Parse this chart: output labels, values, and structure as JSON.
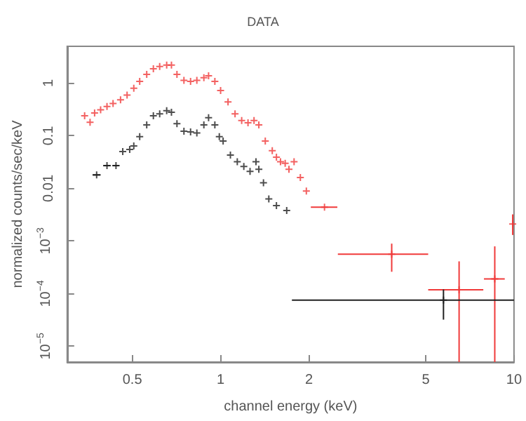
{
  "chart_data": {
    "type": "scatter",
    "title": "DATA",
    "xlabel": "channel energy (keV)",
    "ylabel": "normalized counts/sec/keV",
    "log": "xy",
    "marker": "cross",
    "xlim": [
      0.3,
      10
    ],
    "xticks": [
      0.5,
      1,
      2,
      5,
      10
    ],
    "ylim": [
      5e-06,
      5
    ],
    "yticks": [
      1,
      0.1,
      0.01,
      {
        "value": 0.001,
        "label": "10$^{−3}$"
      },
      {
        "value": 0.0001,
        "label": "10$^{−4}$"
      },
      {
        "value": 1e-05,
        "label": "10$^{−5}$"
      }
    ],
    "series": [
      {
        "color": "#f03a3a",
        "x": [
          0.344,
          0.359,
          0.372,
          0.39,
          0.41,
          0.43,
          0.456,
          0.48,
          0.506,
          0.53,
          0.56,
          0.59,
          0.62,
          0.655,
          0.68,
          0.71,
          0.75,
          0.79,
          0.83,
          0.877,
          0.91,
          0.956,
          1.0,
          1.06,
          1.12,
          1.18,
          1.24,
          1.3,
          1.35,
          1.42,
          1.5,
          1.55,
          1.6,
          1.66,
          1.71,
          1.78,
          1.87,
          1.96,
          2.26,
          3.83,
          6.5,
          8.6,
          9.9
        ],
        "values": [
          0.24,
          0.18,
          0.27,
          0.31,
          0.36,
          0.41,
          0.48,
          0.59,
          0.8,
          1.08,
          1.46,
          1.87,
          2.07,
          2.2,
          2.2,
          1.46,
          1.13,
          1.08,
          1.13,
          1.27,
          1.38,
          1.08,
          0.72,
          0.44,
          0.26,
          0.195,
          0.176,
          0.195,
          0.16,
          0.079,
          0.052,
          0.039,
          0.032,
          0.03,
          0.023,
          0.032,
          0.016,
          0.0089,
          0.0044,
          0.00056,
          0.000118,
          0.00019,
          0.0021
        ],
        "xerrors": [
          null,
          null,
          null,
          null,
          null,
          null,
          null,
          null,
          null,
          null,
          null,
          null,
          null,
          null,
          null,
          null,
          null,
          null,
          null,
          null,
          null,
          null,
          null,
          null,
          null,
          null,
          null,
          null,
          null,
          null,
          null,
          null,
          null,
          null,
          null,
          null,
          null,
          null,
          [
            2.03,
            2.5
          ],
          [
            2.51,
            5.1
          ],
          [
            5.1,
            7.86
          ],
          [
            7.9,
            9.3
          ],
          null
        ],
        "errors": [
          null,
          null,
          null,
          null,
          null,
          null,
          null,
          null,
          null,
          null,
          null,
          null,
          null,
          null,
          null,
          null,
          null,
          null,
          null,
          null,
          null,
          null,
          null,
          null,
          null,
          null,
          null,
          null,
          null,
          null,
          null,
          null,
          null,
          null,
          null,
          null,
          null,
          null,
          null,
          [
            0.00026,
            0.00089
          ],
          [
            5e-06,
            0.00041
          ],
          [
            5e-06,
            0.00079
          ],
          [
            0.0013,
            0.0032
          ]
        ]
      },
      {
        "color": "#202020",
        "x": [
          0.378,
          0.41,
          0.44,
          0.464,
          0.49,
          0.506,
          0.53,
          0.56,
          0.59,
          0.62,
          0.655,
          0.68,
          0.71,
          0.75,
          0.79,
          0.83,
          0.877,
          0.91,
          0.956,
          0.99,
          1.02,
          1.08,
          1.14,
          1.2,
          1.26,
          1.32,
          1.35,
          1.4,
          1.46,
          1.55,
          1.68,
          5.75
        ],
        "values": [
          0.018,
          0.027,
          0.027,
          0.05,
          0.055,
          0.064,
          0.096,
          0.16,
          0.24,
          0.26,
          0.3,
          0.28,
          0.17,
          0.122,
          0.118,
          0.113,
          0.16,
          0.22,
          0.16,
          0.096,
          0.079,
          0.043,
          0.032,
          0.026,
          0.021,
          0.032,
          0.023,
          0.0128,
          0.0063,
          0.0047,
          0.0038,
          7.5e-05
        ],
        "xerrors": [
          0.012,
          0.012,
          0.012,
          null,
          null,
          null,
          null,
          null,
          null,
          null,
          null,
          null,
          null,
          null,
          null,
          null,
          null,
          null,
          null,
          null,
          null,
          null,
          null,
          null,
          null,
          null,
          null,
          null,
          null,
          null,
          null,
          [
            1.75,
            10
          ]
        ],
        "errors": [
          null,
          null,
          null,
          null,
          null,
          null,
          null,
          null,
          null,
          null,
          null,
          null,
          null,
          null,
          null,
          null,
          null,
          null,
          null,
          null,
          null,
          null,
          null,
          null,
          null,
          null,
          null,
          null,
          null,
          null,
          null,
          [
            3.2e-05,
            0.00012
          ]
        ]
      }
    ]
  }
}
